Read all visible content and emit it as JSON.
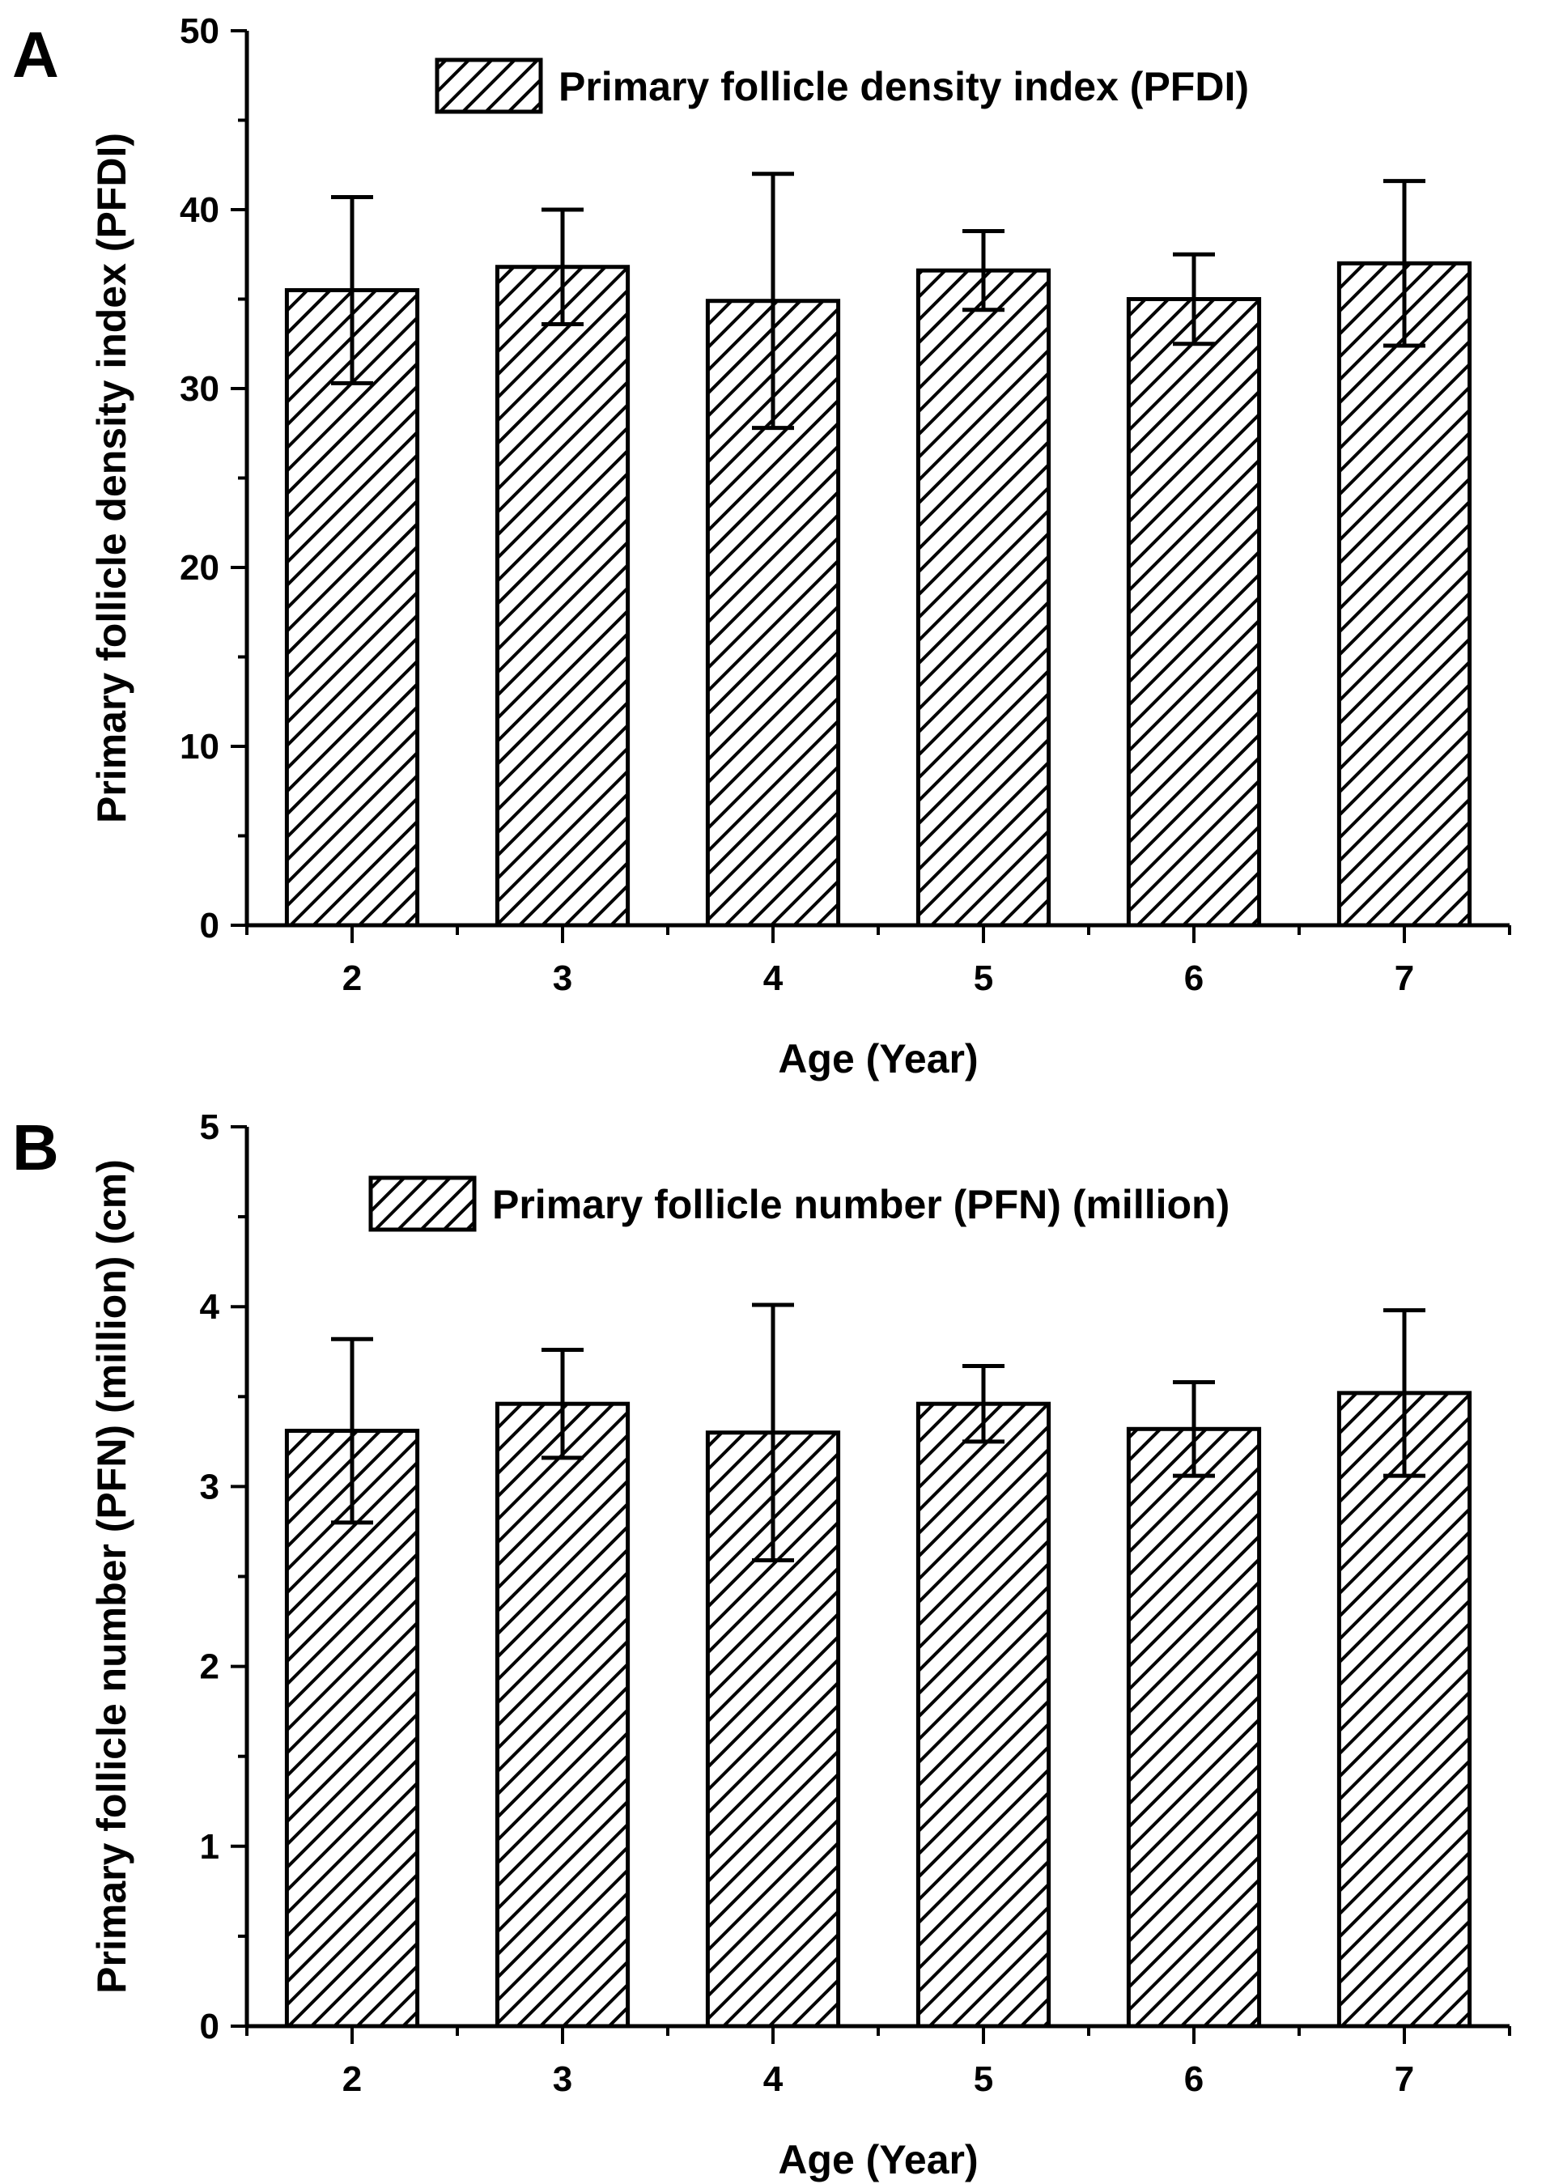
{
  "chart_data": [
    {
      "panel_label": "A",
      "type": "bar",
      "categories": [
        "2",
        "3",
        "4",
        "5",
        "6",
        "7"
      ],
      "values": [
        35.5,
        36.8,
        34.9,
        36.6,
        35.0,
        37.0
      ],
      "errors": [
        5.2,
        3.2,
        7.1,
        2.2,
        2.5,
        4.6
      ],
      "xlabel": "Age (Year)",
      "ylabel": "Primary follicle density index (PFDI)",
      "ylim": [
        0,
        50
      ],
      "yticks": [
        0,
        10,
        20,
        30,
        40,
        50
      ],
      "legend": {
        "entries": [
          "Primary follicle density index (PFDI)"
        ],
        "placement": "top-center"
      },
      "grid": false,
      "bar_pattern": "diagonal-hatch"
    },
    {
      "panel_label": "B",
      "type": "bar",
      "categories": [
        "2",
        "3",
        "4",
        "5",
        "6",
        "7"
      ],
      "values": [
        3.31,
        3.46,
        3.3,
        3.46,
        3.32,
        3.52
      ],
      "errors": [
        0.51,
        0.3,
        0.71,
        0.21,
        0.26,
        0.46
      ],
      "xlabel": "Age (Year)",
      "ylabel": "Primary follicle number (PFN) (million) (cm)",
      "ylim": [
        0,
        5
      ],
      "yticks": [
        0,
        1,
        2,
        3,
        4,
        5
      ],
      "legend": {
        "entries": [
          "Primary follicle number (PFN) (million)"
        ],
        "placement": "top-center"
      },
      "grid": false,
      "bar_pattern": "diagonal-hatch"
    }
  ]
}
